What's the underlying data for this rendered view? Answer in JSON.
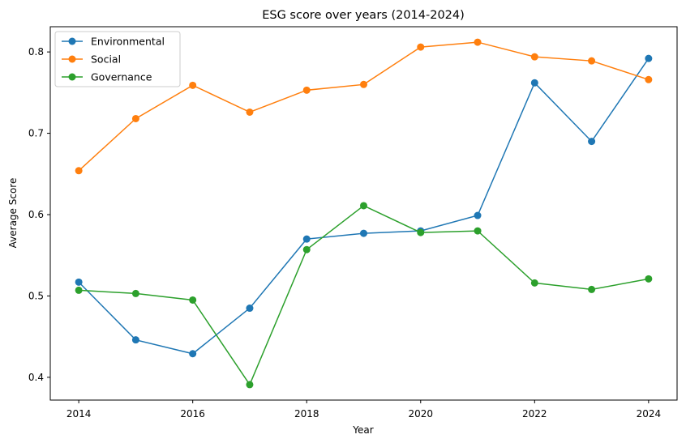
{
  "chart_data": {
    "type": "line",
    "title": "ESG score over years (2014-2024)",
    "xlabel": "Year",
    "ylabel": "Average Score",
    "x": [
      2014,
      2015,
      2016,
      2017,
      2018,
      2019,
      2020,
      2021,
      2022,
      2023,
      2024
    ],
    "xlim": [
      2013.5,
      2024.5
    ],
    "ylim": [
      0.372,
      0.831
    ],
    "xticks": [
      2014,
      2016,
      2018,
      2020,
      2022,
      2024
    ],
    "yticks": [
      0.4,
      0.5,
      0.6,
      0.7,
      0.8
    ],
    "grid": false,
    "legend_position": "top-left",
    "series": [
      {
        "name": "Environmental",
        "color": "#1f77b4",
        "marker": "circle",
        "values": [
          0.517,
          0.446,
          0.429,
          0.485,
          0.57,
          0.577,
          0.58,
          0.599,
          0.762,
          0.69,
          0.792
        ]
      },
      {
        "name": "Social",
        "color": "#ff7f0e",
        "marker": "circle",
        "values": [
          0.654,
          0.718,
          0.759,
          0.726,
          0.753,
          0.76,
          0.806,
          0.812,
          0.794,
          0.789,
          0.766
        ]
      },
      {
        "name": "Governance",
        "color": "#2ca02c",
        "marker": "circle",
        "values": [
          0.507,
          0.503,
          0.495,
          0.391,
          0.557,
          0.611,
          0.578,
          0.58,
          0.516,
          0.508,
          0.521
        ]
      }
    ]
  }
}
